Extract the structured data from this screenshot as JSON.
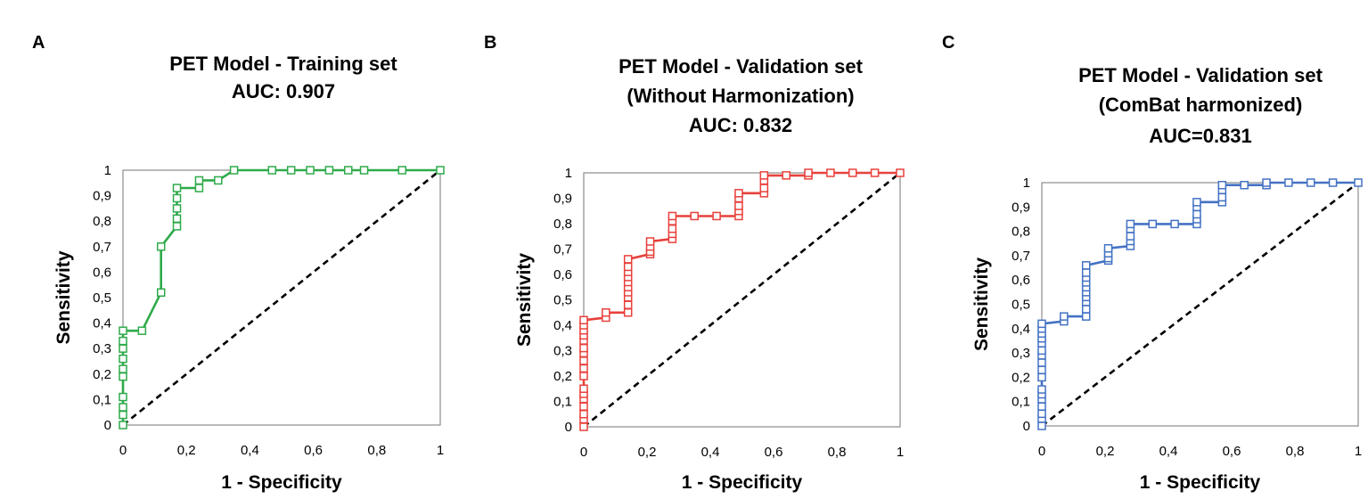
{
  "chart_data": [
    {
      "type": "line",
      "panel": "A",
      "title_lines": [
        "PET Model - Training set",
        "AUC: 0.907"
      ],
      "xlabel": "1 - Specificity",
      "ylabel": "Sensitivity",
      "xlim": [
        0,
        1
      ],
      "ylim": [
        0,
        1
      ],
      "xticks": [
        0,
        0.2,
        0.4,
        0.6,
        0.8,
        1
      ],
      "xtick_labels": [
        "0",
        "0,2",
        "0,4",
        "0,6",
        "0,8",
        "1"
      ],
      "yticks": [
        0,
        0.1,
        0.2,
        0.3,
        0.4,
        0.5,
        0.6,
        0.7,
        0.8,
        0.9,
        1
      ],
      "ytick_labels": [
        "0",
        "0,1",
        "0,2",
        "0,3",
        "0,4",
        "0,5",
        "0,6",
        "0,7",
        "0,8",
        "0,9",
        "1"
      ],
      "grid": false,
      "color": "#2eaa4a",
      "series": [
        {
          "x": [
            0,
            0,
            0,
            0,
            0,
            0,
            0,
            0,
            0,
            0,
            0.06,
            0.12,
            0.12,
            0.17,
            0.17,
            0.17,
            0.17,
            0.17,
            0.24,
            0.24,
            0.3,
            0.35,
            0.47,
            0.53,
            0.59,
            0.65,
            0.71,
            0.76,
            0.88,
            1
          ],
          "y": [
            0,
            0.04,
            0.07,
            0.11,
            0.19,
            0.22,
            0.26,
            0.3,
            0.33,
            0.37,
            0.37,
            0.52,
            0.7,
            0.78,
            0.81,
            0.85,
            0.89,
            0.93,
            0.93,
            0.96,
            0.96,
            1,
            1,
            1,
            1,
            1,
            1,
            1,
            1,
            1
          ]
        }
      ],
      "reference_line": {
        "x": [
          0,
          1
        ],
        "y": [
          0,
          1
        ]
      }
    },
    {
      "type": "line",
      "panel": "B",
      "title_lines": [
        "PET Model - Validation set",
        "(Without Harmonization)",
        "AUC: 0.832"
      ],
      "xlabel": "1 - Specificity",
      "ylabel": "Sensitivity",
      "xlim": [
        0,
        1
      ],
      "ylim": [
        0,
        1
      ],
      "xticks": [
        0,
        0.2,
        0.4,
        0.6,
        0.8,
        1
      ],
      "xtick_labels": [
        "0",
        "0,2",
        "0,4",
        "0,6",
        "0,8",
        "1"
      ],
      "yticks": [
        0,
        0.1,
        0.2,
        0.3,
        0.4,
        0.5,
        0.6,
        0.7,
        0.8,
        0.9,
        1
      ],
      "ytick_labels": [
        "0",
        "0,1",
        "0,2",
        "0,3",
        "0,4",
        "0,5",
        "0,6",
        "0,7",
        "0,8",
        "0,9",
        "1"
      ],
      "grid": false,
      "color": "#e8413c",
      "series": [
        {
          "x": [
            0,
            0,
            0,
            0,
            0,
            0,
            0,
            0,
            0,
            0,
            0,
            0,
            0,
            0,
            0,
            0,
            0,
            0.07,
            0.07,
            0.14,
            0.14,
            0.14,
            0.14,
            0.14,
            0.14,
            0.14,
            0.14,
            0.14,
            0.14,
            0.21,
            0.21,
            0.21,
            0.21,
            0.28,
            0.28,
            0.28,
            0.28,
            0.28,
            0.35,
            0.42,
            0.49,
            0.49,
            0.49,
            0.49,
            0.49,
            0.57,
            0.57,
            0.57,
            0.57,
            0.64,
            0.71,
            0.71,
            0.78,
            0.85,
            0.92,
            1
          ],
          "y": [
            0,
            0.03,
            0.05,
            0.08,
            0.11,
            0.13,
            0.15,
            0.2,
            0.23,
            0.26,
            0.29,
            0.31,
            0.34,
            0.36,
            0.38,
            0.4,
            0.42,
            0.43,
            0.45,
            0.45,
            0.48,
            0.51,
            0.53,
            0.55,
            0.57,
            0.59,
            0.61,
            0.63,
            0.66,
            0.68,
            0.69,
            0.71,
            0.73,
            0.74,
            0.76,
            0.78,
            0.81,
            0.83,
            0.83,
            0.83,
            0.83,
            0.85,
            0.87,
            0.9,
            0.92,
            0.92,
            0.94,
            0.97,
            0.99,
            0.99,
            0.99,
            1,
            1,
            1,
            1,
            1
          ]
        }
      ],
      "reference_line": {
        "x": [
          0,
          1
        ],
        "y": [
          0,
          1
        ]
      }
    },
    {
      "type": "line",
      "panel": "C",
      "title_lines": [
        "PET Model - Validation set",
        "(ComBat harmonized)",
        "AUC=0.831"
      ],
      "xlabel": "1 - Specificity",
      "ylabel": "Sensitivity",
      "xlim": [
        0,
        1
      ],
      "ylim": [
        0,
        1
      ],
      "xticks": [
        0,
        0.2,
        0.4,
        0.6,
        0.8,
        1
      ],
      "xtick_labels": [
        "0",
        "0,2",
        "0,4",
        "0,6",
        "0,8",
        "1"
      ],
      "yticks": [
        0,
        0.1,
        0.2,
        0.3,
        0.4,
        0.5,
        0.6,
        0.7,
        0.8,
        0.9,
        1
      ],
      "ytick_labels": [
        "0",
        "0,1",
        "0,2",
        "0,3",
        "0,4",
        "0,5",
        "0,6",
        "0,7",
        "0,8",
        "0,9",
        "1"
      ],
      "grid": false,
      "color": "#4472c4",
      "series": [
        {
          "x": [
            0,
            0,
            0,
            0,
            0,
            0,
            0,
            0,
            0,
            0,
            0,
            0,
            0,
            0,
            0,
            0,
            0,
            0.07,
            0.07,
            0.14,
            0.14,
            0.14,
            0.14,
            0.14,
            0.14,
            0.14,
            0.14,
            0.14,
            0.14,
            0.21,
            0.21,
            0.21,
            0.21,
            0.28,
            0.28,
            0.28,
            0.28,
            0.28,
            0.35,
            0.42,
            0.49,
            0.49,
            0.49,
            0.49,
            0.49,
            0.57,
            0.57,
            0.57,
            0.57,
            0.64,
            0.71,
            0.71,
            0.78,
            0.85,
            0.92,
            1
          ],
          "y": [
            0,
            0.03,
            0.05,
            0.08,
            0.11,
            0.13,
            0.15,
            0.2,
            0.23,
            0.26,
            0.29,
            0.31,
            0.34,
            0.36,
            0.38,
            0.4,
            0.42,
            0.43,
            0.45,
            0.45,
            0.48,
            0.51,
            0.53,
            0.55,
            0.57,
            0.59,
            0.61,
            0.63,
            0.66,
            0.68,
            0.69,
            0.71,
            0.73,
            0.74,
            0.76,
            0.78,
            0.81,
            0.83,
            0.83,
            0.83,
            0.83,
            0.85,
            0.87,
            0.9,
            0.92,
            0.92,
            0.94,
            0.97,
            0.99,
            0.99,
            0.99,
            1,
            1,
            1,
            1,
            1
          ]
        }
      ],
      "reference_line": {
        "x": [
          0,
          1
        ],
        "y": [
          0,
          1
        ]
      }
    }
  ]
}
